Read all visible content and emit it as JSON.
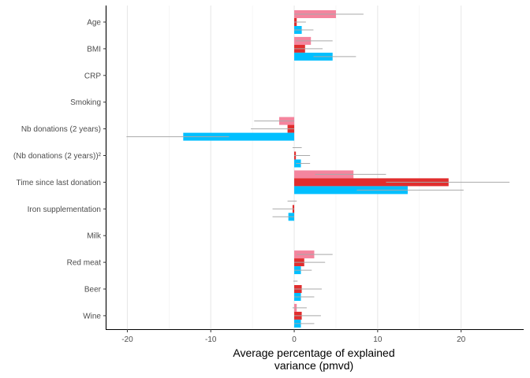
{
  "chart_data": {
    "type": "bar",
    "orientation": "horizontal",
    "xlabel_lines": [
      "Average percentage of explained",
      "variance (pmvd)"
    ],
    "xlim": [
      -22.5,
      27.5
    ],
    "x_ticks": [
      -20,
      -10,
      0,
      10,
      20
    ],
    "x_tick_labels": [
      "-20",
      "-10",
      "0",
      "10",
      "20"
    ],
    "grid": "vertical",
    "legend": "none",
    "categories": [
      "Age",
      "BMI",
      "CRP",
      "Smoking",
      "Nb donations (2 years)",
      "(Nb donations (2 years))²",
      "Time since last donation",
      "Iron supplementation",
      "Milk",
      "Red meat",
      "Beer",
      "Wine"
    ],
    "series": [
      {
        "color": "#f4859e",
        "values": [
          5.0,
          2.0,
          0.0,
          0.0,
          -1.8,
          0.0,
          7.1,
          0.0,
          0.0,
          2.4,
          0.0,
          0.3
        ],
        "error_low": [
          0.0,
          0.2,
          0.0,
          0.0,
          -4.8,
          -0.2,
          2.5,
          -0.8,
          0.0,
          0.3,
          -0.1,
          -0.2
        ],
        "error_high": [
          8.3,
          4.6,
          0.0,
          0.0,
          0.0,
          0.9,
          11.0,
          0.3,
          0.0,
          4.6,
          0.4,
          1.5
        ]
      },
      {
        "color": "#e12d2d",
        "values": [
          0.3,
          1.3,
          0.0,
          0.0,
          -0.8,
          0.2,
          18.5,
          -0.2,
          0.0,
          1.2,
          0.9,
          0.9
        ],
        "error_low": [
          0.0,
          0.0,
          0.0,
          0.0,
          -5.2,
          0.0,
          11.0,
          -2.6,
          0.0,
          0.0,
          0.0,
          0.0
        ],
        "error_high": [
          1.4,
          3.4,
          0.0,
          0.0,
          0.0,
          1.9,
          25.8,
          0.0,
          0.0,
          3.7,
          3.3,
          3.2
        ]
      },
      {
        "color": "#00bfff",
        "values": [
          0.9,
          4.6,
          0.0,
          0.0,
          -13.3,
          0.8,
          13.6,
          -0.7,
          0.0,
          0.8,
          0.8,
          0.8
        ],
        "error_low": [
          0.0,
          2.3,
          0.0,
          0.0,
          -20.1,
          0.2,
          7.5,
          -2.6,
          0.0,
          0.0,
          0.0,
          0.0
        ],
        "error_high": [
          2.3,
          7.4,
          0.0,
          0.0,
          -7.8,
          1.9,
          20.3,
          0.0,
          0.0,
          2.1,
          2.4,
          2.4
        ]
      }
    ]
  }
}
